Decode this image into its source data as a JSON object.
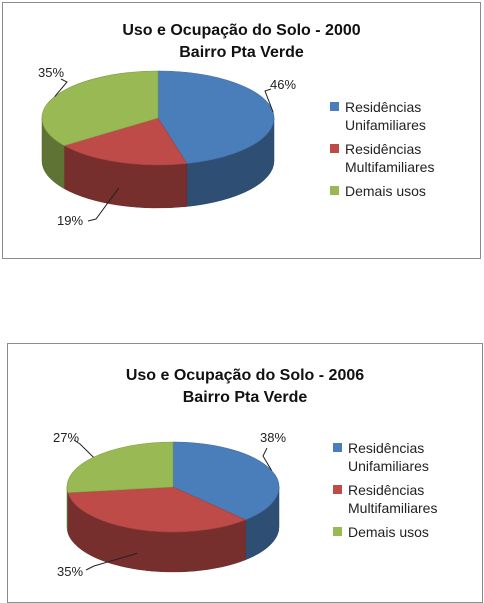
{
  "colors": {
    "blue": "#4a7ebb",
    "red": "#be4b48",
    "green": "#98b954"
  },
  "chart_data": [
    {
      "type": "pie",
      "title": "Uso e Ocupação do Solo - 2000",
      "subtitle": "Bairro Pta Verde",
      "categories": [
        "Residências Unifamiliares",
        "Residências Multifamiliares",
        "Demais usos"
      ],
      "values": [
        46,
        19,
        35
      ],
      "labels": [
        "46%",
        "19%",
        "35%"
      ],
      "legend_position": "right"
    },
    {
      "type": "pie",
      "title": "Uso e Ocupação do Solo - 2006",
      "subtitle": "Bairro Pta Verde",
      "categories": [
        "Residências Unifamiliares",
        "Residências Multifamiliares",
        "Demais usos"
      ],
      "values": [
        38,
        35,
        27
      ],
      "labels": [
        "38%",
        "35%",
        "27%"
      ],
      "legend_position": "right"
    }
  ]
}
